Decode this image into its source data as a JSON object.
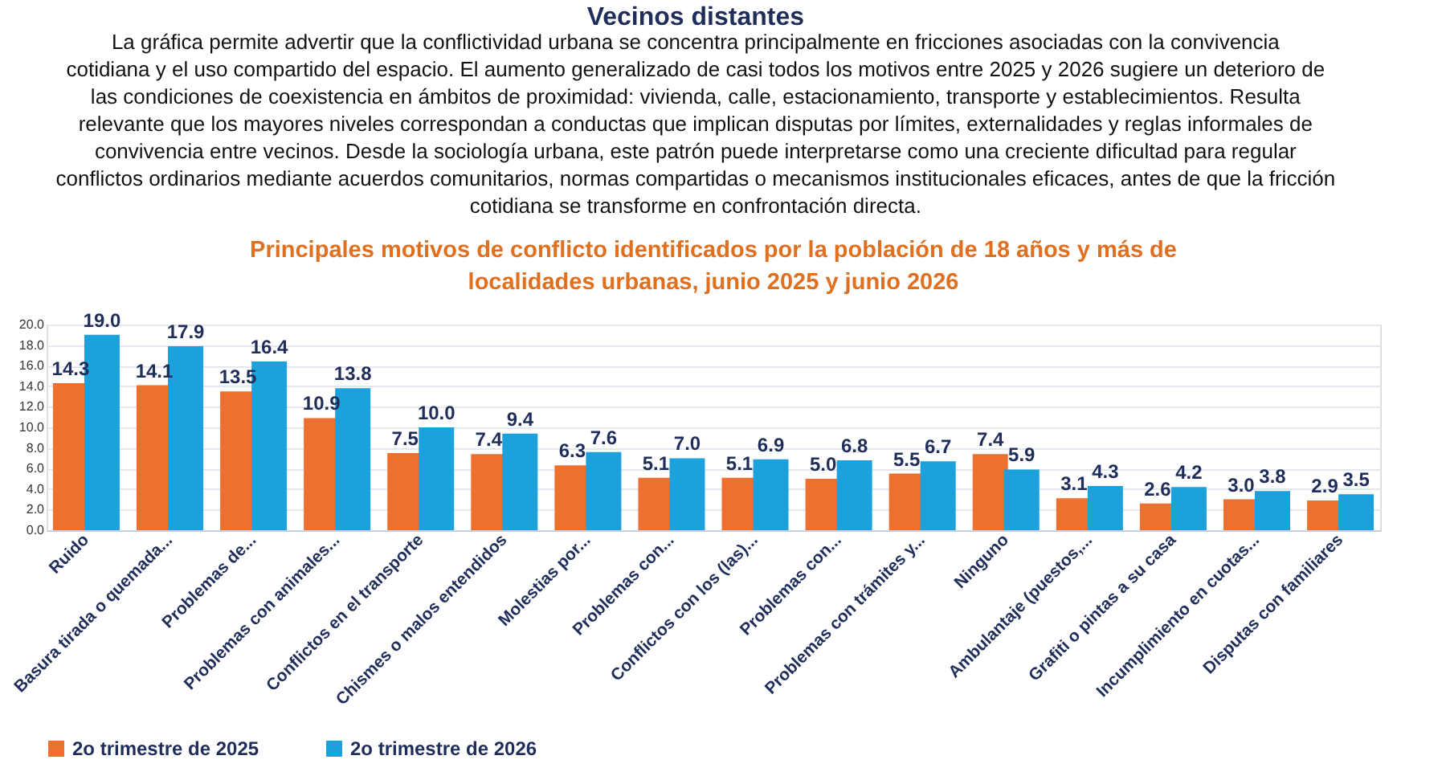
{
  "chart_data": {
    "type": "bar",
    "title": "Vecinos distantes",
    "annotations": [
      "La gráfica permite advertir que la conflictividad urbana se concentra principalmente en fricciones asociadas con la convivencia cotidiana y el uso compartido del espacio. El aumento generalizado de casi todos los motivos entre 2025 y 2026 sugiere un deterioro de las condiciones de coexistencia en ámbitos de proximidad: vivienda, calle, estacionamiento, transporte y establecimientos. Resulta relevante que los mayores niveles correspondan a conductas que implican disputas por límites, externalidades y reglas informales de convivencia entre vecinos. Desde la sociología urbana, este patrón puede interpretarse como una creciente dificultad para regular conflictos ordinarios mediante acuerdos comunitarios, normas compartidas o mecanismos institucionales eficaces, antes de que la fricción cotidiana se transforme en confrontación directa."
    ],
    "subtitle": "Principales motivos de conflicto identificados por la población de 18 años y más de localidades urbanas, junio 2025 y junio 2026",
    "categories": [
      "Ruido",
      "Basura tirada o quemada...",
      "Problemas de...",
      "Problemas con animales...",
      "Conflictos en el transporte",
      "Chismes o malos entendidos",
      "Molestias por...",
      "Problemas con...",
      "Conflictos con los (las)...",
      "Problemas con...",
      "Problemas con trámites y...",
      "Ninguno",
      "Ambulantaje (puestos,...",
      "Grafiti o pintas a su casa",
      "Incumplimiento en cuotas...",
      "Disputas con familiares"
    ],
    "series": [
      {
        "name": "2o trimestre de 2025",
        "color": "#ed7031",
        "values": [
          14.3,
          14.1,
          13.5,
          10.9,
          7.5,
          7.4,
          6.3,
          5.1,
          5.1,
          5.0,
          5.5,
          7.4,
          3.1,
          2.6,
          3.0,
          2.9
        ],
        "value_labels": [
          "14.3",
          "14.1",
          "13.5",
          "10.9",
          "7.5",
          "7.4",
          "6.3",
          "5.1",
          "5.1",
          "5.0",
          "5.5",
          "7.4",
          "3.1",
          "2.6",
          "3.0",
          "2.9"
        ]
      },
      {
        "name": "2o trimestre de 2026",
        "color": "#1da1dc",
        "values": [
          19.0,
          17.9,
          16.4,
          13.8,
          10.0,
          9.4,
          7.6,
          7.0,
          6.9,
          6.8,
          6.7,
          5.9,
          4.3,
          4.2,
          3.8,
          3.5
        ],
        "value_labels": [
          "19.0",
          "17.9",
          "16.4",
          "13.8",
          "10.0",
          "9.4",
          "7.6",
          "7.0",
          "6.9",
          "6.8",
          "6.7",
          "5.9",
          "4.3",
          "4.2",
          "3.8",
          "3.5"
        ]
      }
    ],
    "ylim": [
      0,
      20
    ],
    "yticks": [
      {
        "value": 0,
        "label": "0.0"
      },
      {
        "value": 2,
        "label": "2.0"
      },
      {
        "value": 4,
        "label": "4.0"
      },
      {
        "value": 6,
        "label": "6.0"
      },
      {
        "value": 8,
        "label": "8.0"
      },
      {
        "value": 10,
        "label": "10.0"
      },
      {
        "value": 12,
        "label": "12.0"
      },
      {
        "value": 14,
        "label": "14.0"
      },
      {
        "value": 16,
        "label": "16.0"
      },
      {
        "value": 18,
        "label": "18.0"
      },
      {
        "value": 20,
        "label": "20.0"
      }
    ],
    "grid": "y",
    "legend": "bottom"
  }
}
